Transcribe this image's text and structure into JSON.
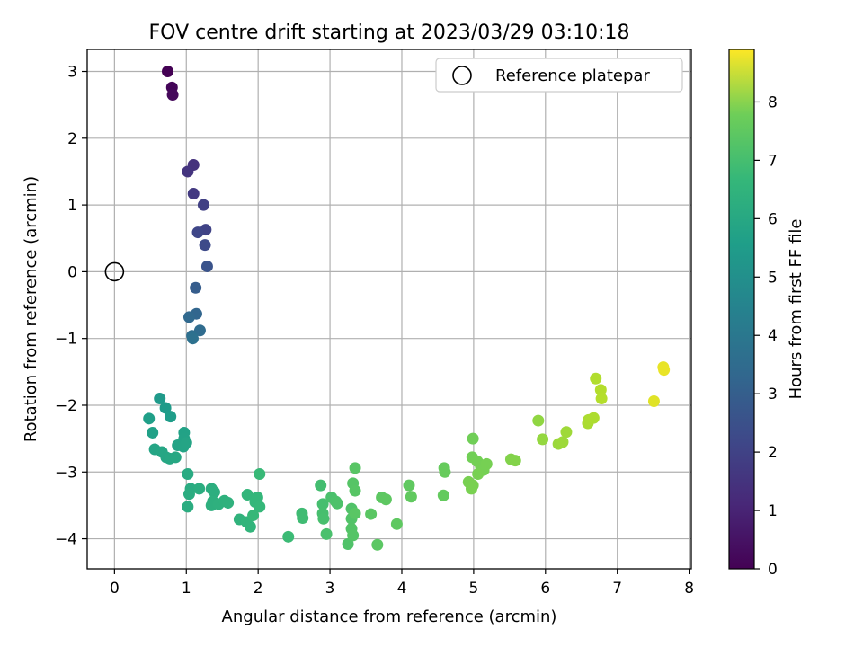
{
  "chart_data": {
    "type": "scatter",
    "title": "FOV centre drift starting at 2023/03/29 03:10:18",
    "xlabel": "Angular distance from reference (arcmin)",
    "ylabel": "Rotation from reference (arcmin)",
    "xlim": [
      -0.38,
      8.03
    ],
    "ylim": [
      -4.45,
      3.33
    ],
    "xticks": [
      0,
      1,
      2,
      3,
      4,
      5,
      6,
      7,
      8
    ],
    "yticks": [
      -4,
      -3,
      -2,
      -1,
      0,
      1,
      2,
      3
    ],
    "grid": true,
    "legend": {
      "entries": [
        "Reference platepar"
      ],
      "placement": "top-right"
    },
    "reference": {
      "x": 0,
      "y": 0,
      "label": "Reference platepar"
    },
    "colorbar": {
      "label": "Hours from first FF file",
      "colormap": "viridis",
      "range": [
        0,
        8.9
      ],
      "ticks": [
        0,
        1,
        2,
        3,
        4,
        5,
        6,
        7,
        8
      ]
    },
    "points": [
      {
        "x": 0.74,
        "y": 3.0,
        "c": 0.0
      },
      {
        "x": 0.8,
        "y": 2.76,
        "c": 0.1
      },
      {
        "x": 0.81,
        "y": 2.65,
        "c": 0.2
      },
      {
        "x": 1.1,
        "y": 1.6,
        "c": 1.3
      },
      {
        "x": 1.02,
        "y": 1.5,
        "c": 1.35
      },
      {
        "x": 1.1,
        "y": 1.17,
        "c": 1.5
      },
      {
        "x": 1.24,
        "y": 1.0,
        "c": 1.7
      },
      {
        "x": 1.27,
        "y": 0.63,
        "c": 1.8
      },
      {
        "x": 1.16,
        "y": 0.59,
        "c": 1.9
      },
      {
        "x": 1.26,
        "y": 0.4,
        "c": 2.0
      },
      {
        "x": 1.29,
        "y": 0.08,
        "c": 2.3
      },
      {
        "x": 1.13,
        "y": -0.24,
        "c": 2.6
      },
      {
        "x": 1.14,
        "y": -0.63,
        "c": 2.9
      },
      {
        "x": 1.04,
        "y": -0.68,
        "c": 3.0
      },
      {
        "x": 1.19,
        "y": -0.88,
        "c": 3.1
      },
      {
        "x": 1.08,
        "y": -0.96,
        "c": 3.2
      },
      {
        "x": 1.09,
        "y": -1.0,
        "c": 3.3
      },
      {
        "x": 0.63,
        "y": -1.9,
        "c": 4.8
      },
      {
        "x": 0.71,
        "y": -2.04,
        "c": 4.85
      },
      {
        "x": 0.78,
        "y": -2.17,
        "c": 4.9
      },
      {
        "x": 0.48,
        "y": -2.2,
        "c": 5.0
      },
      {
        "x": 0.53,
        "y": -2.41,
        "c": 5.05
      },
      {
        "x": 0.97,
        "y": -2.41,
        "c": 5.1
      },
      {
        "x": 0.97,
        "y": -2.5,
        "c": 5.12
      },
      {
        "x": 0.88,
        "y": -2.6,
        "c": 5.15
      },
      {
        "x": 0.96,
        "y": -2.62,
        "c": 5.18
      },
      {
        "x": 1.0,
        "y": -2.56,
        "c": 5.2
      },
      {
        "x": 0.56,
        "y": -2.66,
        "c": 5.22
      },
      {
        "x": 0.66,
        "y": -2.7,
        "c": 5.25
      },
      {
        "x": 0.72,
        "y": -2.78,
        "c": 5.28
      },
      {
        "x": 0.77,
        "y": -2.8,
        "c": 5.3
      },
      {
        "x": 0.85,
        "y": -2.78,
        "c": 5.32
      },
      {
        "x": 1.02,
        "y": -3.03,
        "c": 5.4
      },
      {
        "x": 1.06,
        "y": -3.25,
        "c": 5.45
      },
      {
        "x": 1.04,
        "y": -3.33,
        "c": 5.48
      },
      {
        "x": 1.02,
        "y": -3.52,
        "c": 5.5
      },
      {
        "x": 1.18,
        "y": -3.25,
        "c": 5.52
      },
      {
        "x": 1.35,
        "y": -3.25,
        "c": 5.55
      },
      {
        "x": 1.39,
        "y": -3.3,
        "c": 5.58
      },
      {
        "x": 1.37,
        "y": -3.44,
        "c": 5.6
      },
      {
        "x": 1.35,
        "y": -3.5,
        "c": 5.62
      },
      {
        "x": 1.45,
        "y": -3.48,
        "c": 5.65
      },
      {
        "x": 1.53,
        "y": -3.43,
        "c": 5.68
      },
      {
        "x": 1.58,
        "y": -3.46,
        "c": 5.7
      },
      {
        "x": 1.74,
        "y": -3.71,
        "c": 5.75
      },
      {
        "x": 1.84,
        "y": -3.75,
        "c": 5.8
      },
      {
        "x": 1.89,
        "y": -3.82,
        "c": 5.82
      },
      {
        "x": 1.85,
        "y": -3.34,
        "c": 5.85
      },
      {
        "x": 1.96,
        "y": -3.45,
        "c": 5.88
      },
      {
        "x": 1.99,
        "y": -3.38,
        "c": 5.9
      },
      {
        "x": 2.02,
        "y": -3.52,
        "c": 5.92
      },
      {
        "x": 1.93,
        "y": -3.65,
        "c": 5.95
      },
      {
        "x": 2.02,
        "y": -3.03,
        "c": 5.98
      },
      {
        "x": 2.42,
        "y": -3.97,
        "c": 6.05
      },
      {
        "x": 2.61,
        "y": -3.62,
        "c": 6.1
      },
      {
        "x": 2.62,
        "y": -3.69,
        "c": 6.12
      },
      {
        "x": 2.87,
        "y": -3.2,
        "c": 6.2
      },
      {
        "x": 2.9,
        "y": -3.48,
        "c": 6.22
      },
      {
        "x": 2.9,
        "y": -3.62,
        "c": 6.25
      },
      {
        "x": 2.91,
        "y": -3.7,
        "c": 6.27
      },
      {
        "x": 2.95,
        "y": -3.93,
        "c": 6.3
      },
      {
        "x": 3.02,
        "y": -3.38,
        "c": 6.32
      },
      {
        "x": 3.08,
        "y": -3.44,
        "c": 6.35
      },
      {
        "x": 3.1,
        "y": -3.47,
        "c": 6.37
      },
      {
        "x": 3.25,
        "y": -4.08,
        "c": 6.4
      },
      {
        "x": 3.3,
        "y": -3.55,
        "c": 6.42
      },
      {
        "x": 3.3,
        "y": -3.7,
        "c": 6.44
      },
      {
        "x": 3.3,
        "y": -3.85,
        "c": 6.46
      },
      {
        "x": 3.32,
        "y": -3.95,
        "c": 6.48
      },
      {
        "x": 3.32,
        "y": -3.17,
        "c": 6.5
      },
      {
        "x": 3.35,
        "y": -3.28,
        "c": 6.52
      },
      {
        "x": 3.35,
        "y": -2.94,
        "c": 6.54
      },
      {
        "x": 3.35,
        "y": -3.62,
        "c": 6.56
      },
      {
        "x": 3.57,
        "y": -3.63,
        "c": 6.58
      },
      {
        "x": 3.66,
        "y": -4.09,
        "c": 6.6
      },
      {
        "x": 3.72,
        "y": -3.38,
        "c": 6.62
      },
      {
        "x": 3.78,
        "y": -3.41,
        "c": 6.64
      },
      {
        "x": 3.93,
        "y": -3.78,
        "c": 6.66
      },
      {
        "x": 4.1,
        "y": -3.2,
        "c": 6.68
      },
      {
        "x": 4.13,
        "y": -3.37,
        "c": 6.7
      },
      {
        "x": 4.58,
        "y": -3.35,
        "c": 6.75
      },
      {
        "x": 4.59,
        "y": -2.94,
        "c": 6.78
      },
      {
        "x": 4.6,
        "y": -3.0,
        "c": 6.8
      },
      {
        "x": 4.99,
        "y": -2.5,
        "c": 6.95
      },
      {
        "x": 4.98,
        "y": -2.78,
        "c": 6.97
      },
      {
        "x": 5.05,
        "y": -2.84,
        "c": 6.99
      },
      {
        "x": 5.1,
        "y": -2.92,
        "c": 7.0
      },
      {
        "x": 5.14,
        "y": -2.97,
        "c": 7.02
      },
      {
        "x": 5.18,
        "y": -2.88,
        "c": 7.04
      },
      {
        "x": 5.06,
        "y": -3.03,
        "c": 7.05
      },
      {
        "x": 4.93,
        "y": -3.15,
        "c": 7.06
      },
      {
        "x": 4.99,
        "y": -3.2,
        "c": 7.07
      },
      {
        "x": 4.97,
        "y": -3.25,
        "c": 7.08
      },
      {
        "x": 5.52,
        "y": -2.81,
        "c": 7.2
      },
      {
        "x": 5.58,
        "y": -2.83,
        "c": 7.22
      },
      {
        "x": 5.9,
        "y": -2.23,
        "c": 7.4
      },
      {
        "x": 5.96,
        "y": -2.51,
        "c": 7.45
      },
      {
        "x": 6.18,
        "y": -2.58,
        "c": 7.55
      },
      {
        "x": 6.24,
        "y": -2.55,
        "c": 7.58
      },
      {
        "x": 6.29,
        "y": -2.4,
        "c": 7.6
      },
      {
        "x": 6.59,
        "y": -2.27,
        "c": 7.75
      },
      {
        "x": 6.6,
        "y": -2.22,
        "c": 7.78
      },
      {
        "x": 6.67,
        "y": -2.19,
        "c": 7.8
      },
      {
        "x": 6.7,
        "y": -1.6,
        "c": 7.85
      },
      {
        "x": 6.77,
        "y": -1.77,
        "c": 7.88
      },
      {
        "x": 6.78,
        "y": -1.9,
        "c": 7.9
      },
      {
        "x": 7.51,
        "y": -1.94,
        "c": 8.5
      },
      {
        "x": 7.64,
        "y": -1.43,
        "c": 8.6
      },
      {
        "x": 7.65,
        "y": -1.47,
        "c": 8.62
      }
    ]
  }
}
